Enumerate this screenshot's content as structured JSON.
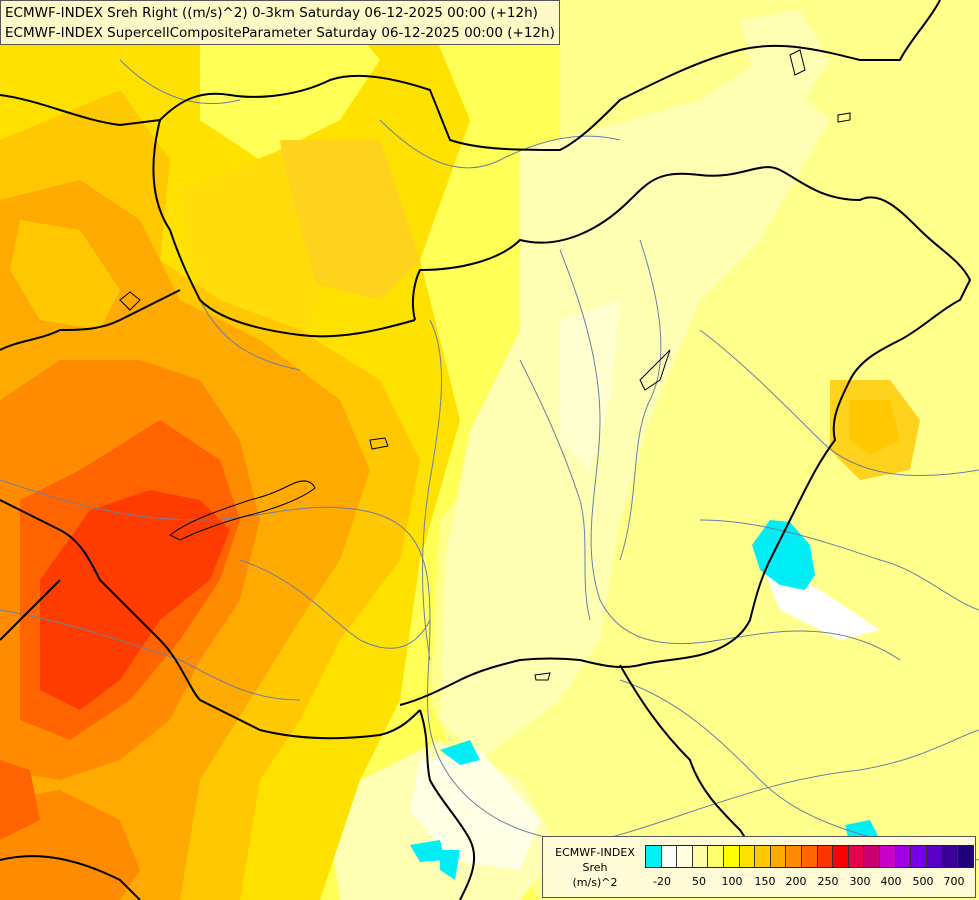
{
  "header": {
    "line1": "ECMWF-INDEX Sreh Right ((m/s)^2) 0-3km Saturday 06-12-2025 00:00 (+12h)",
    "line2": "ECMWF-INDEX SupercellCompositeParameter Saturday 06-12-2025 00:00 (+12h)"
  },
  "legend": {
    "model": "ECMWF-INDEX",
    "param": "Sreh",
    "unit": "(m/s)^2",
    "colors": [
      "#00f0f8",
      "#ffffff",
      "#ffffe0",
      "#ffffa8",
      "#ffff70",
      "#ffff00",
      "#ffe100",
      "#ffc800",
      "#ffaa00",
      "#ff8c00",
      "#ff6400",
      "#ff3200",
      "#ff0000",
      "#e6004b",
      "#c8006e",
      "#c800c8",
      "#a000e1",
      "#7800e6",
      "#5a00c8",
      "#3c0096",
      "#1e0078"
    ],
    "tick_labels": [
      "-20",
      "50",
      "100",
      "150",
      "200",
      "250",
      "300",
      "400",
      "500",
      "700"
    ]
  }
}
